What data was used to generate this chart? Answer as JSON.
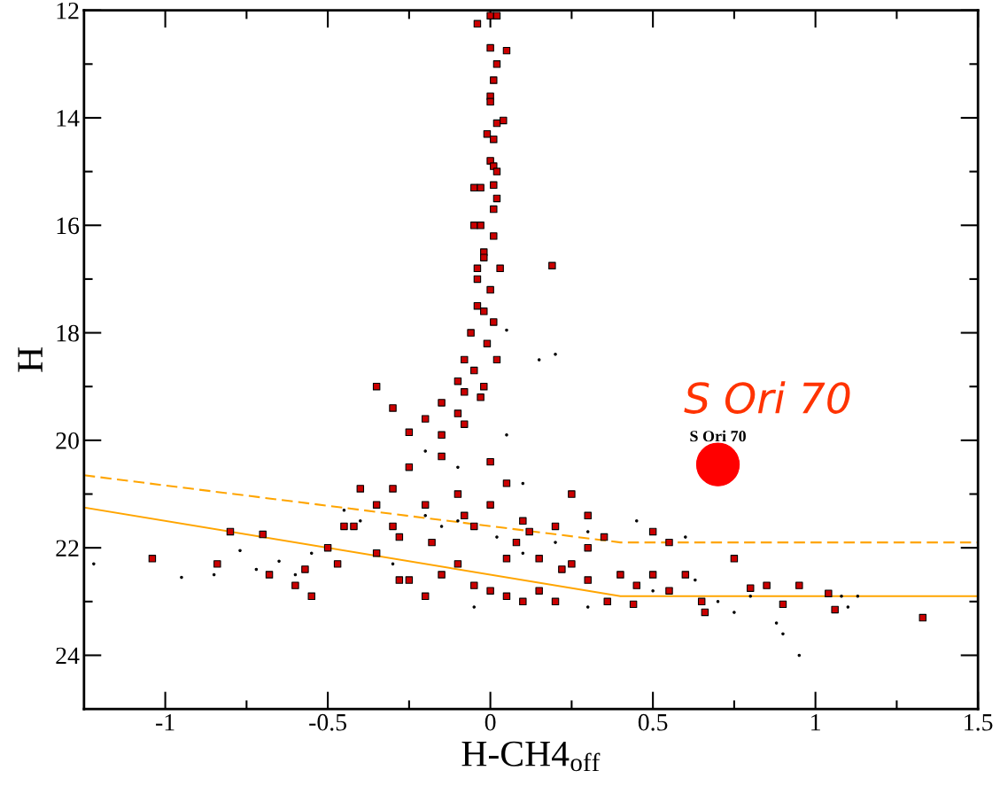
{
  "chart_data": {
    "type": "scatter",
    "xlabel": "H-CH4$_{off}$",
    "ylabel": "H",
    "xlim": [
      -1.25,
      1.5
    ],
    "ylim": [
      25,
      12
    ],
    "xticks": [
      -1,
      -0.5,
      0,
      0.5,
      1,
      1.5,
      {
        "value": -0.75,
        "label": null
      },
      {
        "value": -0.25,
        "label": null
      },
      {
        "value": 0.25,
        "label": null
      },
      {
        "value": 0.75,
        "label": null
      },
      {
        "value": 1.25,
        "label": null
      }
    ],
    "yticks": [
      12,
      14,
      16,
      18,
      20,
      22,
      24,
      {
        "value": 13,
        "label": null
      },
      {
        "value": 15,
        "label": null
      },
      {
        "value": 17,
        "label": null
      },
      {
        "value": 19,
        "label": null
      },
      {
        "value": 21,
        "label": null
      },
      {
        "value": 23,
        "label": null
      }
    ],
    "grid": false,
    "legend": false,
    "series": [
      {
        "marker": "circle",
        "color": "#000000",
        "x": [
          -1.22,
          -0.95,
          -0.85,
          -0.77,
          -0.72,
          -0.65,
          -0.6,
          -0.55,
          -0.45,
          -0.4,
          -0.3,
          -0.2,
          -0.1,
          0.02,
          0.1,
          0.2,
          0.3,
          -0.05,
          0.3,
          0.45,
          0.5,
          0.6,
          0.63,
          0.7,
          0.75,
          0.8,
          0.88,
          0.9,
          0.95,
          1.08,
          1.1,
          1.13,
          0.15,
          0.2,
          0.05,
          -0.1,
          0.1,
          -0.2,
          0.05,
          -0.15
        ],
        "values": [
          22.3,
          22.55,
          22.5,
          22.05,
          22.4,
          22.25,
          22.5,
          22.1,
          21.3,
          21.5,
          22.3,
          21.4,
          21.5,
          21.8,
          22.1,
          21.9,
          21.7,
          23.1,
          23.1,
          21.5,
          22.8,
          21.8,
          22.6,
          23.0,
          23.2,
          22.9,
          23.4,
          23.6,
          24.0,
          22.9,
          23.1,
          22.9,
          18.5,
          18.4,
          17.95,
          20.5,
          20.8,
          20.2,
          19.9,
          21.6
        ]
      },
      {
        "marker": "square",
        "color": "#cc0000",
        "x": [
          0.0,
          0.02,
          -0.04,
          0,
          0.05,
          0.02,
          0.01,
          0,
          0,
          0.02,
          0.04,
          -0.01,
          0.01,
          0,
          0.01,
          0.02,
          -0.05,
          -0.03,
          0.01,
          0.02,
          0.01,
          -0.05,
          -0.03,
          0.01,
          -0.02,
          -0.02,
          -0.04,
          0.03,
          -0.04,
          0.0,
          0.19,
          -0.04,
          -0.02,
          0.01,
          -0.06,
          -0.01,
          -0.08,
          -0.05,
          0.02,
          -0.1,
          -0.02,
          -0.08,
          -0.03,
          -0.15,
          -0.1,
          -0.2,
          -0.08,
          -0.25,
          -0.15,
          -0.3,
          -0.35,
          -1.04,
          -0.84,
          -0.8,
          -0.7,
          -0.68,
          -0.6,
          -0.57,
          -0.55,
          -0.5,
          -0.45,
          -0.42,
          -0.47,
          -0.4,
          -0.35,
          -0.3,
          -0.3,
          -0.25,
          -0.2,
          -0.15,
          -0.1,
          -0.05,
          0,
          0.05,
          0.1,
          0.15,
          0.2,
          -0.2,
          -0.1,
          0.0,
          0.1,
          0.2,
          -0.25,
          -0.15,
          0.0,
          0.05,
          -0.05,
          0.08,
          0.15,
          0.25,
          0.3,
          0.35,
          0.3,
          0.4,
          0.45,
          0.5,
          0.55,
          0.6,
          0.65,
          0.66,
          0.75,
          0.8,
          0.85,
          0.9,
          0.95,
          1.04,
          1.06,
          1.33,
          -0.28,
          -0.18,
          -0.08,
          0.05,
          0.12,
          0.22,
          -0.35,
          -0.28,
          0.25,
          0.3,
          0.36,
          0.44,
          0.55,
          0.5
        ],
        "values": [
          12.1,
          12.1,
          12.25,
          12.7,
          12.75,
          13,
          13.3,
          13.6,
          13.7,
          14.1,
          14.05,
          14.3,
          14.4,
          14.8,
          14.9,
          15,
          15.3,
          15.3,
          15.25,
          15.5,
          15.7,
          16,
          16,
          16.2,
          16.5,
          16.6,
          16.8,
          16.8,
          17,
          17.2,
          16.75,
          17.5,
          17.6,
          17.8,
          18,
          18.2,
          18.5,
          18.7,
          18.5,
          18.9,
          19,
          19.1,
          19.2,
          19.3,
          19.5,
          19.6,
          19.7,
          19.85,
          19.9,
          19.4,
          19.0,
          22.2,
          22.3,
          21.7,
          21.75,
          22.5,
          22.7,
          22.4,
          22.9,
          22.0,
          21.6,
          21.6,
          22.3,
          20.9,
          21.2,
          20.9,
          21.6,
          22.6,
          22.9,
          22.5,
          22.3,
          22.7,
          22.8,
          22.9,
          23.0,
          22.8,
          23.0,
          21.2,
          21.0,
          21.2,
          21.5,
          21.6,
          20.5,
          20.3,
          20.4,
          20.8,
          21.6,
          21.9,
          22.2,
          22.3,
          22.0,
          21.8,
          22.6,
          22.5,
          22.7,
          22.5,
          22.8,
          22.5,
          23.0,
          23.2,
          22.2,
          22.75,
          22.7,
          23.05,
          22.7,
          22.85,
          23.15,
          23.3,
          21.8,
          21.9,
          21.4,
          22.2,
          21.7,
          22.4,
          22.1,
          22.6,
          21.0,
          21.4,
          23.0,
          23.05,
          21.9,
          21.7
        ]
      },
      {
        "type": "line",
        "marker": "none",
        "line_style": "dashed",
        "color": "#ffa500",
        "x": [
          -1.25,
          0.4,
          1.5
        ],
        "values": [
          20.65,
          21.9,
          21.9
        ]
      },
      {
        "type": "line",
        "marker": "none",
        "line_style": "solid",
        "color": "#ffa500",
        "x": [
          -1.25,
          0.4,
          1.5
        ],
        "values": [
          21.25,
          22.9,
          22.9
        ]
      },
      {
        "marker": "circle",
        "color": "#ff0000",
        "x": [
          0.7
        ],
        "values": [
          20.45
        ]
      }
    ],
    "annotations": [
      {
        "text": "S Ori 70",
        "x": 0.7,
        "y": 20.45
      },
      "S Ori 70"
    ]
  }
}
